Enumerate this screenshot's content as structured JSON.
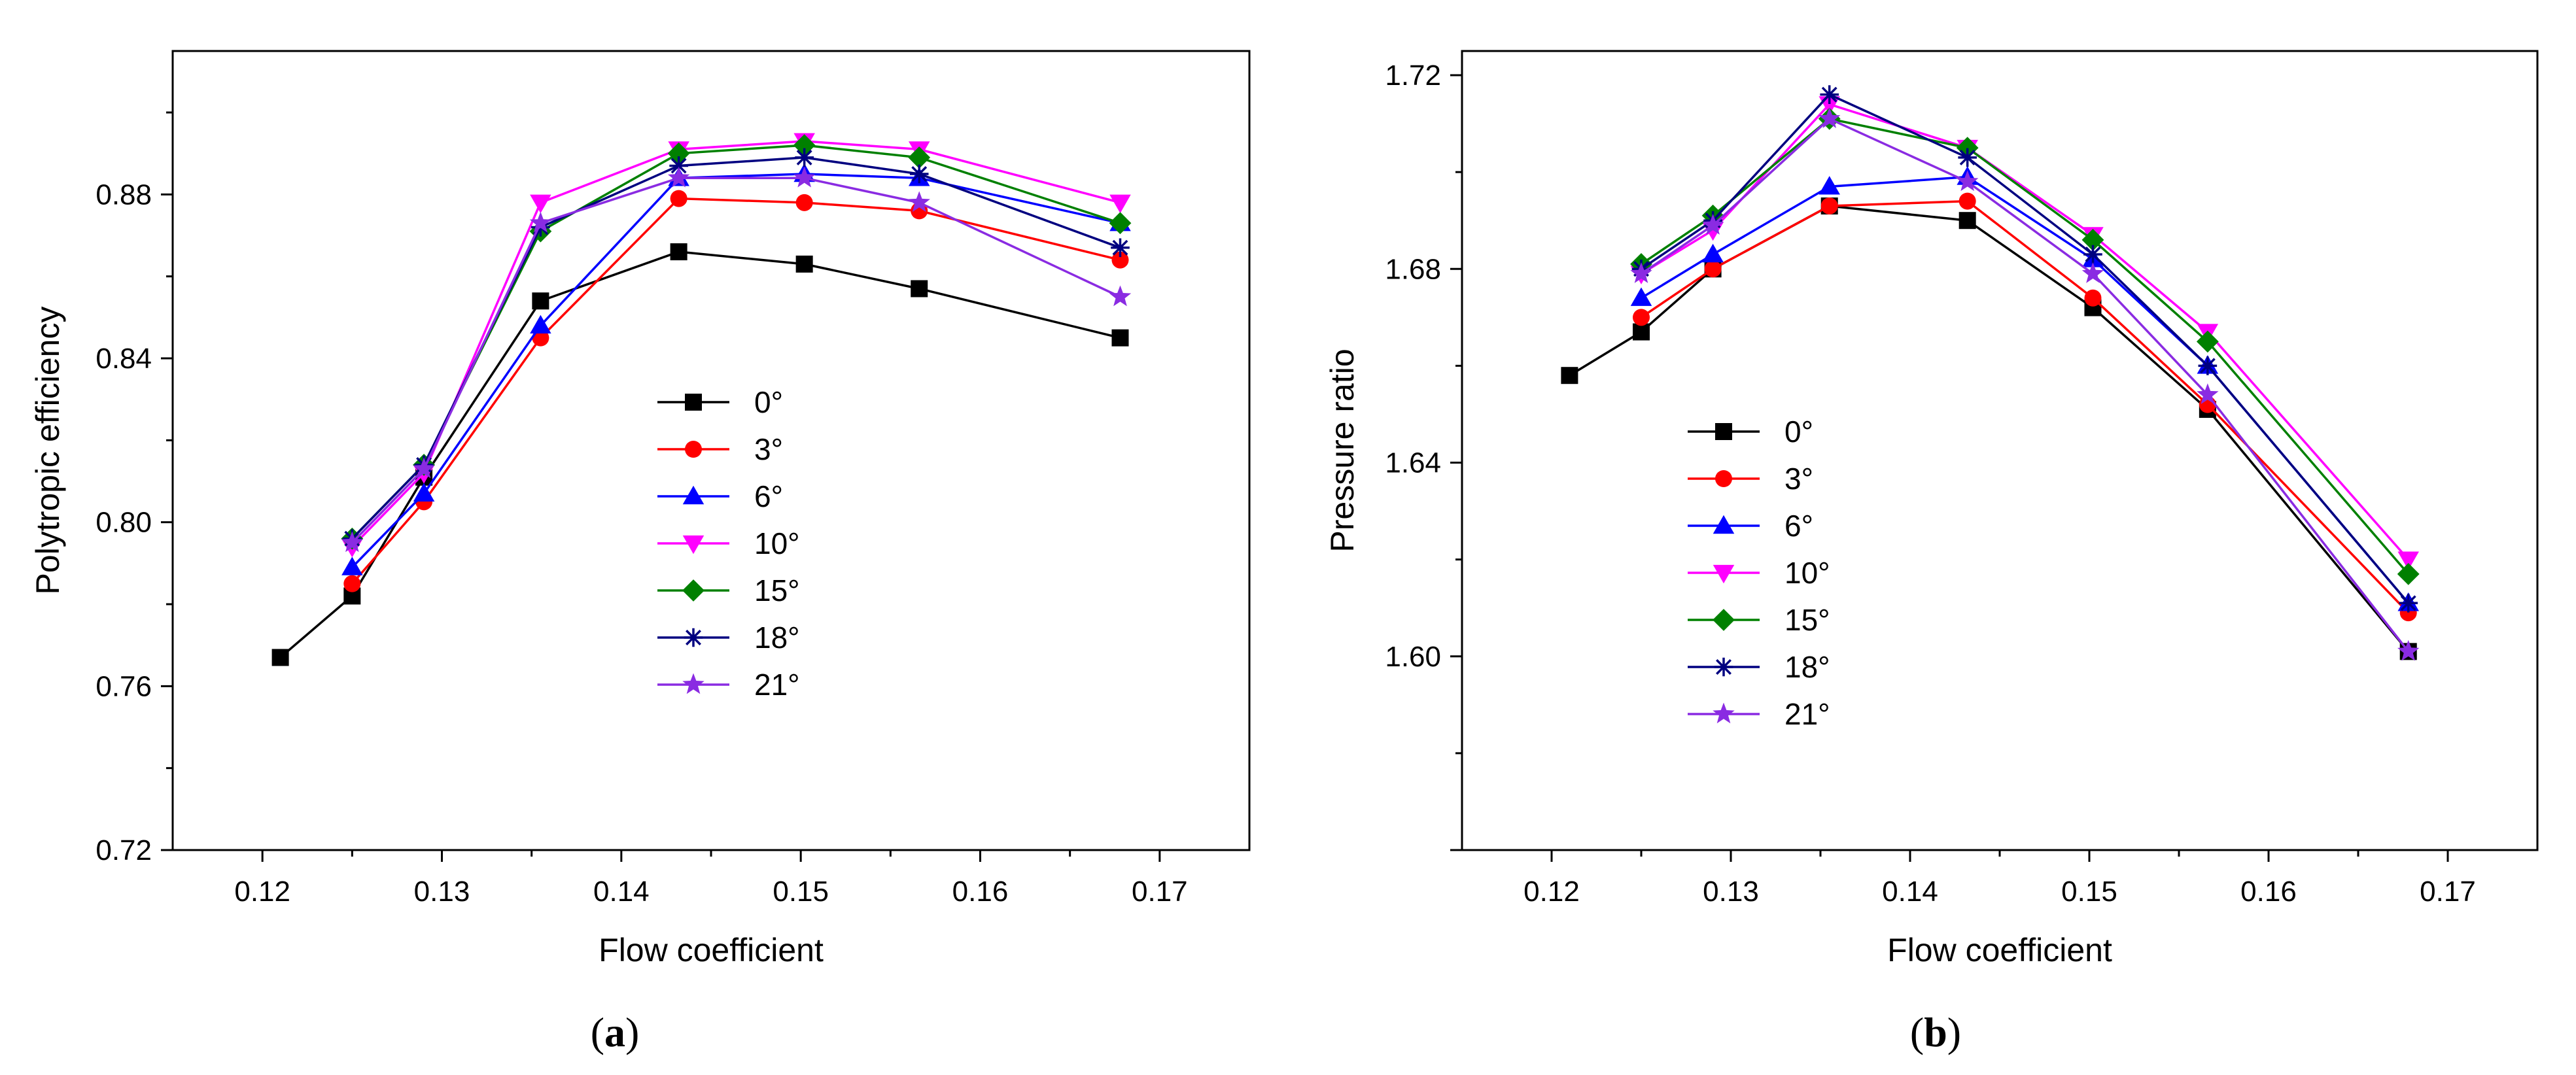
{
  "chart_data": [
    {
      "type": "line",
      "caption": "a",
      "xlabel": "Flow coefficient",
      "ylabel": "Polytropic efficiency",
      "xlim": [
        0.115,
        0.175
      ],
      "ylim": [
        0.72,
        0.915
      ],
      "xticks": [
        0.12,
        0.13,
        0.14,
        0.15,
        0.16,
        0.17
      ],
      "xtick_labels": [
        "0.12",
        "0.13",
        "0.14",
        "0.15",
        "0.16",
        "0.17"
      ],
      "yticks": [
        0.72,
        0.76,
        0.8,
        0.84,
        0.88
      ],
      "ytick_labels": [
        "0.72",
        "0.76",
        "0.80",
        "0.84",
        "0.88"
      ],
      "legend_position": "center",
      "series": [
        {
          "name": "0°",
          "color": "#000000",
          "marker": "square",
          "x": [
            0.121,
            0.125,
            0.129,
            0.1355,
            0.1432,
            0.1502,
            0.1566,
            0.1678
          ],
          "y": [
            0.767,
            0.782,
            0.811,
            0.854,
            0.866,
            0.863,
            0.857,
            0.845
          ]
        },
        {
          "name": "3°",
          "color": "#ff0000",
          "marker": "circle",
          "x": [
            0.125,
            0.129,
            0.1355,
            0.1432,
            0.1502,
            0.1566,
            0.1678
          ],
          "y": [
            0.785,
            0.805,
            0.845,
            0.879,
            0.878,
            0.876,
            0.864
          ]
        },
        {
          "name": "6°",
          "color": "#0000ff",
          "marker": "triangle-up",
          "x": [
            0.125,
            0.129,
            0.1355,
            0.1432,
            0.1502,
            0.1566,
            0.1678
          ],
          "y": [
            0.789,
            0.807,
            0.848,
            0.884,
            0.885,
            0.884,
            0.873
          ]
        },
        {
          "name": "10°",
          "color": "#ff00ff",
          "marker": "triangle-down",
          "x": [
            0.125,
            0.129,
            0.1355,
            0.1432,
            0.1502,
            0.1566,
            0.1678
          ],
          "y": [
            0.794,
            0.812,
            0.878,
            0.891,
            0.893,
            0.891,
            0.878
          ]
        },
        {
          "name": "15°",
          "color": "#008000",
          "marker": "diamond",
          "x": [
            0.125,
            0.129,
            0.1355,
            0.1432,
            0.1502,
            0.1566,
            0.1678
          ],
          "y": [
            0.796,
            0.814,
            0.871,
            0.89,
            0.892,
            0.889,
            0.873
          ]
        },
        {
          "name": "18°",
          "color": "#000080",
          "marker": "asterisk",
          "x": [
            0.125,
            0.129,
            0.1355,
            0.1432,
            0.1502,
            0.1566,
            0.1678
          ],
          "y": [
            0.796,
            0.814,
            0.872,
            0.887,
            0.889,
            0.885,
            0.867
          ]
        },
        {
          "name": "21°",
          "color": "#8a2be2",
          "marker": "star",
          "x": [
            0.125,
            0.129,
            0.1355,
            0.1432,
            0.1502,
            0.1566,
            0.1678
          ],
          "y": [
            0.795,
            0.813,
            0.873,
            0.884,
            0.884,
            0.878,
            0.855
          ]
        }
      ]
    },
    {
      "type": "line",
      "caption": "b",
      "xlabel": "Flow coefficient",
      "ylabel": "Pressure ratio",
      "xlim": [
        0.115,
        0.175
      ],
      "ylim": [
        1.56,
        1.725
      ],
      "xticks": [
        0.12,
        0.13,
        0.14,
        0.15,
        0.16,
        0.17
      ],
      "xtick_labels": [
        "0.12",
        "0.13",
        "0.14",
        "0.15",
        "0.16",
        "0.17"
      ],
      "yticks": [
        1.6,
        1.64,
        1.68,
        1.72
      ],
      "ytick_labels": [
        "1.60",
        "1.64",
        "1.68",
        "1.72"
      ],
      "legend_position": "center-left",
      "series": [
        {
          "name": "0°",
          "color": "#000000",
          "marker": "square",
          "x": [
            0.121,
            0.125,
            0.129,
            0.1355,
            0.1432,
            0.1502,
            0.1566,
            0.1678
          ],
          "y": [
            1.658,
            1.667,
            1.68,
            1.693,
            1.69,
            1.672,
            1.651,
            1.601
          ]
        },
        {
          "name": "3°",
          "color": "#ff0000",
          "marker": "circle",
          "x": [
            0.125,
            0.129,
            0.1355,
            0.1432,
            0.1502,
            0.1566,
            0.1678
          ],
          "y": [
            1.67,
            1.68,
            1.693,
            1.694,
            1.674,
            1.652,
            1.609
          ]
        },
        {
          "name": "6°",
          "color": "#0000ff",
          "marker": "triangle-up",
          "x": [
            0.125,
            0.129,
            0.1355,
            0.1432,
            0.1502,
            0.1566,
            0.1678
          ],
          "y": [
            1.674,
            1.683,
            1.697,
            1.699,
            1.682,
            1.66,
            1.611
          ]
        },
        {
          "name": "10°",
          "color": "#ff00ff",
          "marker": "triangle-down",
          "x": [
            0.125,
            0.129,
            0.1355,
            0.1432,
            0.1502,
            0.1566,
            0.1678
          ],
          "y": [
            1.679,
            1.688,
            1.714,
            1.705,
            1.687,
            1.667,
            1.62
          ]
        },
        {
          "name": "15°",
          "color": "#008000",
          "marker": "diamond",
          "x": [
            0.125,
            0.129,
            0.1355,
            0.1432,
            0.1502,
            0.1566,
            0.1678
          ],
          "y": [
            1.681,
            1.691,
            1.711,
            1.705,
            1.686,
            1.665,
            1.617
          ]
        },
        {
          "name": "18°",
          "color": "#000080",
          "marker": "asterisk",
          "x": [
            0.125,
            0.129,
            0.1355,
            0.1432,
            0.1502,
            0.1566,
            0.1678
          ],
          "y": [
            1.68,
            1.69,
            1.716,
            1.703,
            1.683,
            1.66,
            1.611
          ]
        },
        {
          "name": "21°",
          "color": "#8a2be2",
          "marker": "star",
          "x": [
            0.125,
            0.129,
            0.1355,
            0.1432,
            0.1502,
            0.1566,
            0.1678
          ],
          "y": [
            1.679,
            1.689,
            1.711,
            1.698,
            1.679,
            1.654,
            1.601
          ]
        }
      ]
    }
  ]
}
